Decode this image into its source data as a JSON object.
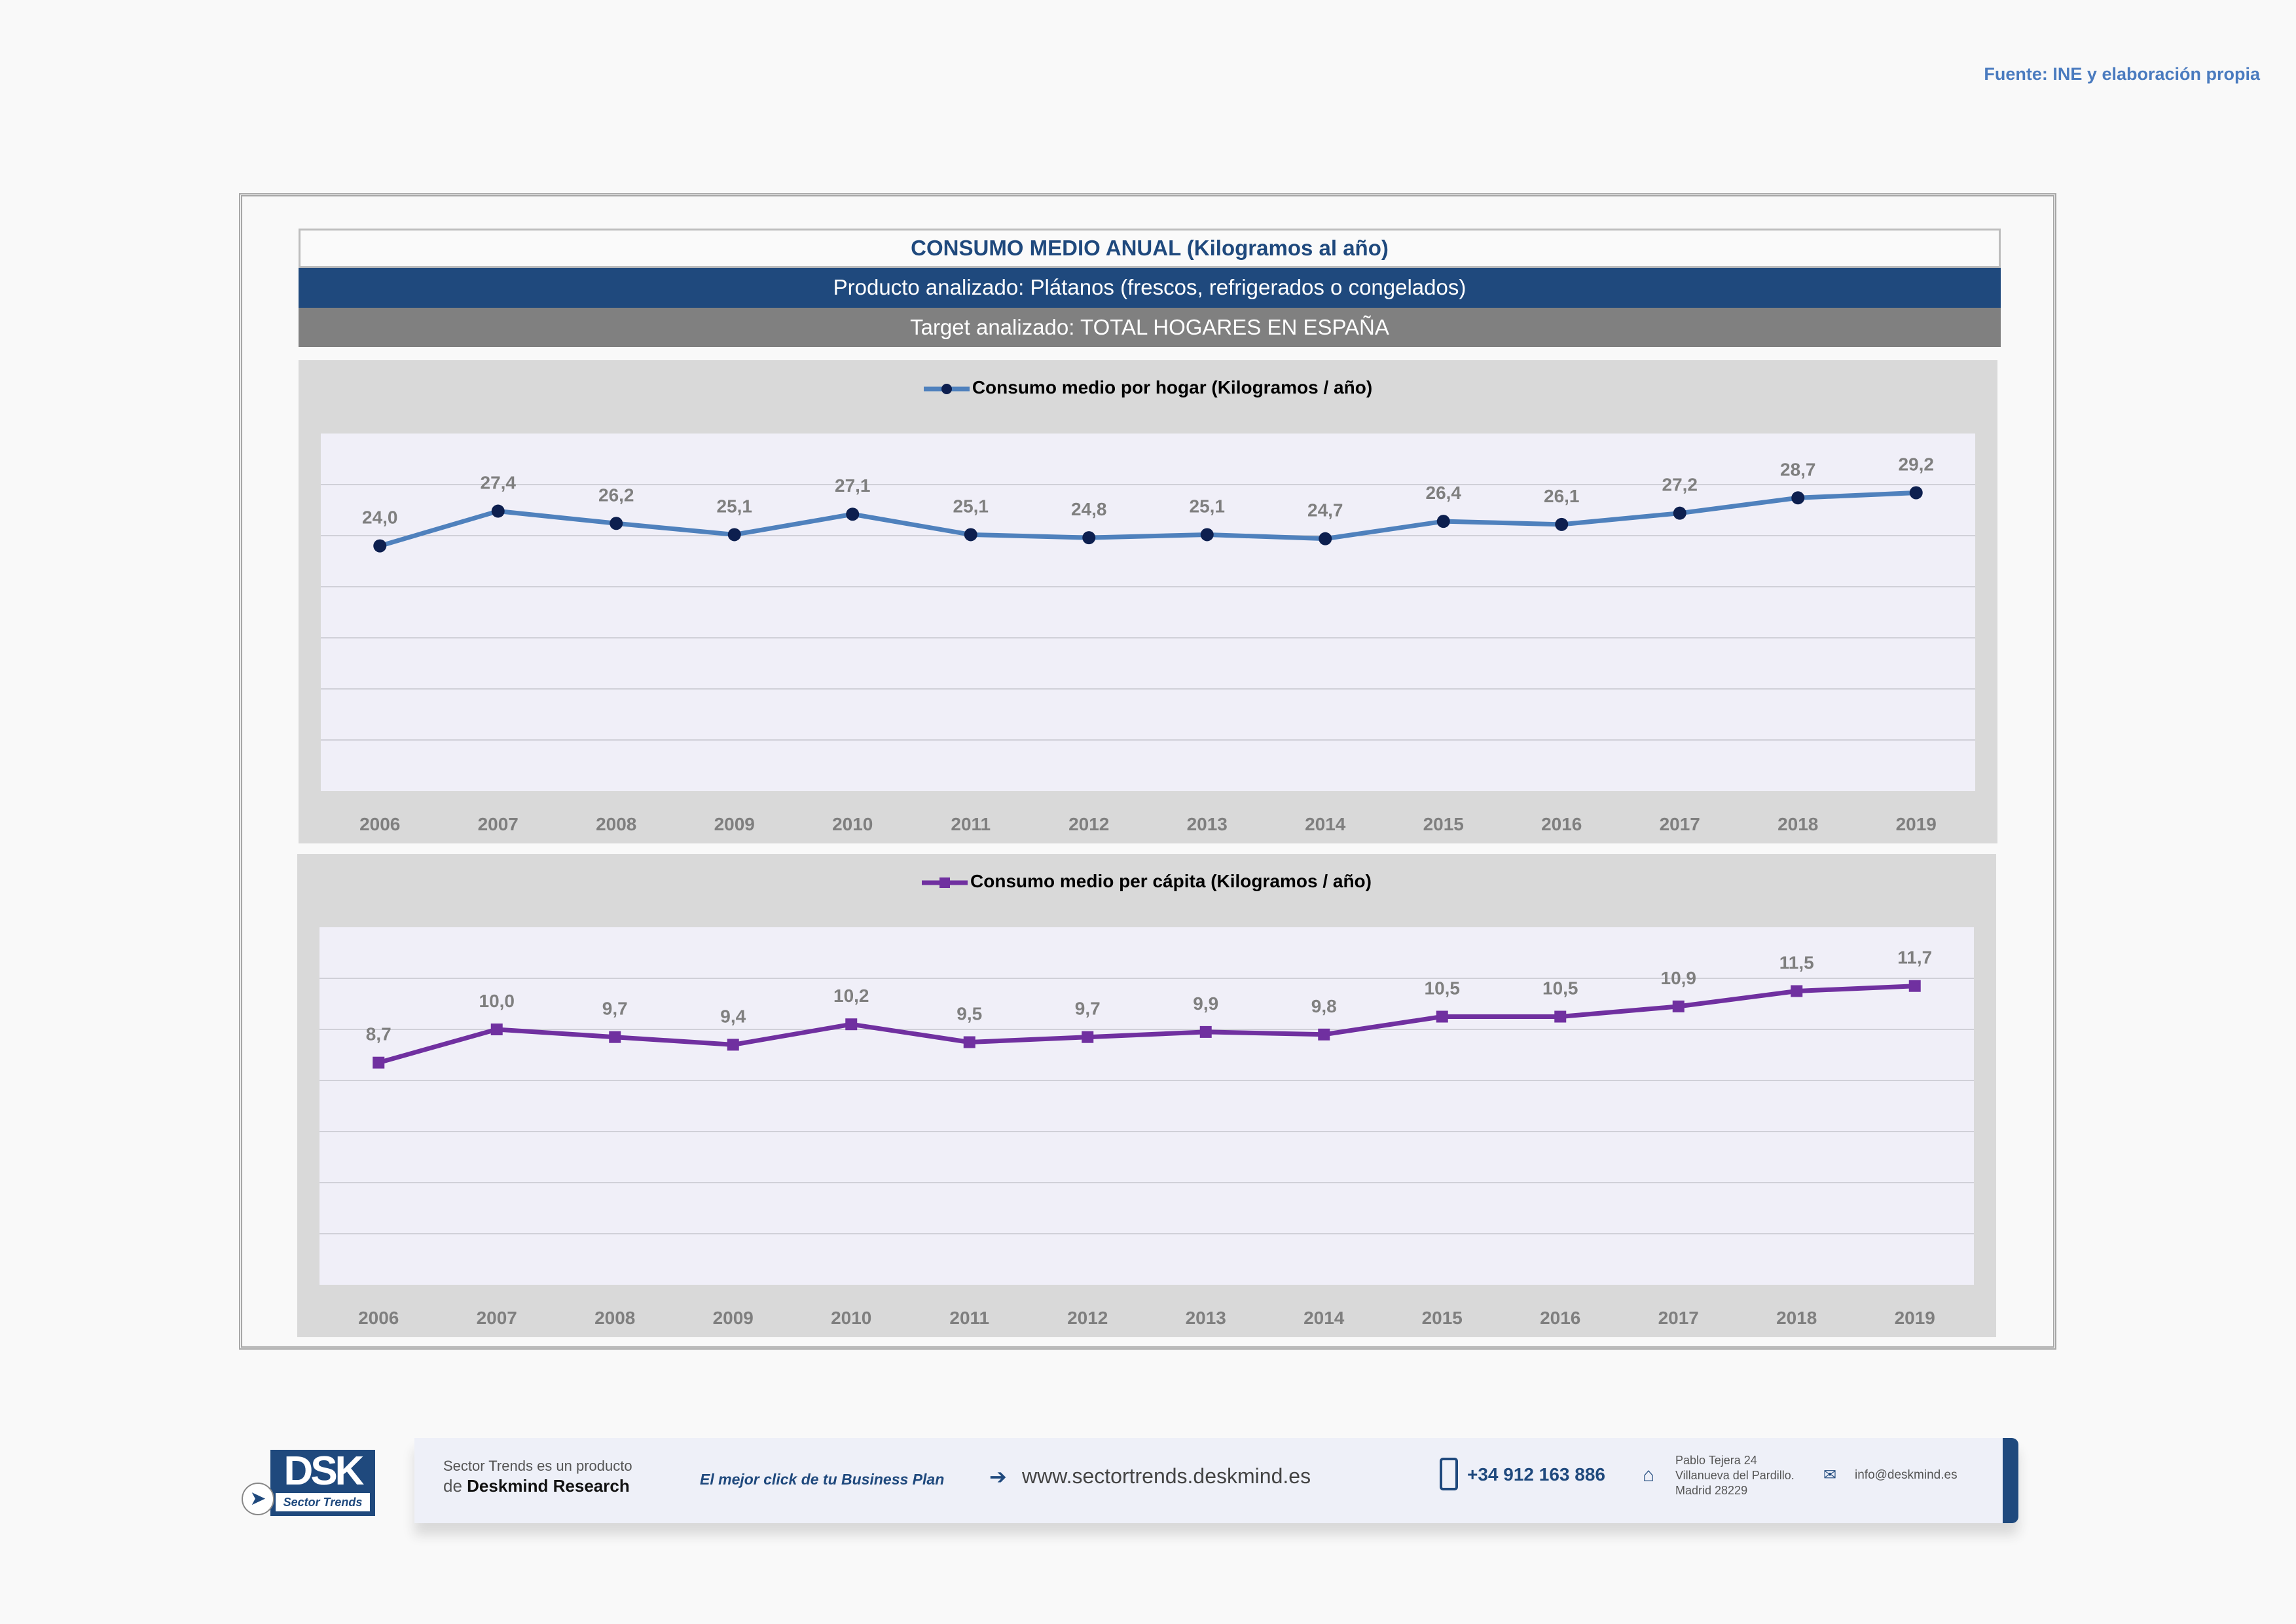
{
  "source": "Fuente: INE y elaboración propia",
  "header": {
    "title": "CONSUMO MEDIO ANUAL (Kilogramos al año)",
    "product": "Producto analizado: Plátanos (frescos, refrigerados o congelados)",
    "target": "Target analizado: TOTAL HOGARES EN ESPAÑA"
  },
  "chart_data": [
    {
      "type": "line",
      "title": "",
      "legend": "Consumo medio por hogar  (Kilogramos / año)",
      "legend_position": "top",
      "categories": [
        "2006",
        "2007",
        "2008",
        "2009",
        "2010",
        "2011",
        "2012",
        "2013",
        "2014",
        "2015",
        "2016",
        "2017",
        "2018",
        "2019"
      ],
      "values": [
        24.0,
        27.4,
        26.2,
        25.1,
        27.1,
        25.1,
        24.8,
        25.1,
        24.7,
        26.4,
        26.1,
        27.2,
        28.7,
        29.2
      ],
      "labels": [
        "24,0",
        "27,4",
        "26,2",
        "25,1",
        "27,1",
        "25,1",
        "24,8",
        "25,1",
        "24,7",
        "26,4",
        "26,1",
        "27,2",
        "28,7",
        "29,2"
      ],
      "ylim": [
        0,
        35
      ],
      "ystep": 5,
      "grid": true,
      "line_color": "#4f81bd",
      "marker_color": "#0d1f4f",
      "marker": "circle"
    },
    {
      "type": "line",
      "title": "",
      "legend": "Consumo medio per cápita  (Kilogramos / año)",
      "legend_position": "top",
      "categories": [
        "2006",
        "2007",
        "2008",
        "2009",
        "2010",
        "2011",
        "2012",
        "2013",
        "2014",
        "2015",
        "2016",
        "2017",
        "2018",
        "2019"
      ],
      "values": [
        8.7,
        10.0,
        9.7,
        9.4,
        10.2,
        9.5,
        9.7,
        9.9,
        9.8,
        10.5,
        10.5,
        10.9,
        11.5,
        11.7
      ],
      "labels": [
        "8,7",
        "10,0",
        "9,7",
        "9,4",
        "10,2",
        "9,5",
        "9,7",
        "9,9",
        "9,8",
        "10,5",
        "10,5",
        "10,9",
        "11,5",
        "11,7"
      ],
      "ylim": [
        0,
        14
      ],
      "ystep": 2,
      "grid": true,
      "line_color": "#7030a0",
      "marker_color": "#7030a0",
      "marker": "square"
    }
  ],
  "footer": {
    "logo": "DSK",
    "logo_sub": "Sector Trends",
    "line1": "Sector Trends es un producto",
    "line2_prefix": "de ",
    "line2_brand": "Deskmind Research",
    "slogan": "El mejor click de tu Business Plan",
    "website": "www.sectortrends.deskmind.es",
    "phone": "+34 912 163 886",
    "addr1": "Pablo Tejera 24",
    "addr2": "Villanueva del Pardillo.",
    "addr3": "Madrid 28229",
    "email": "info@deskmind.es"
  }
}
